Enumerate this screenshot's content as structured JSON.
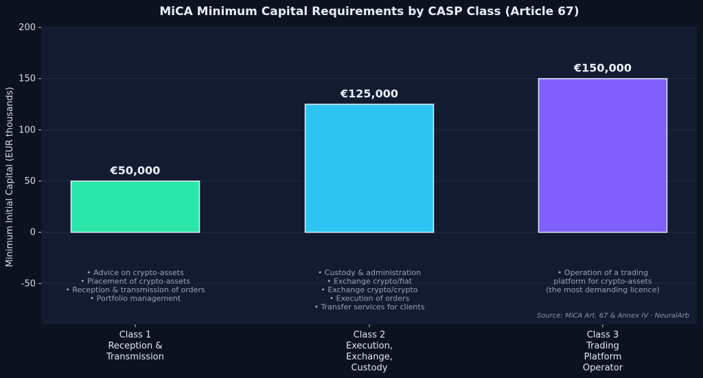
{
  "chart_data": {
    "type": "bar",
    "title": "MiCA Minimum Capital Requirements by CASP Class (Article 67)",
    "ylabel": "Minimum Initial Capital (EUR thousands)",
    "xlabel": "",
    "ylim": [
      -90,
      200
    ],
    "yticks": [
      -50,
      0,
      50,
      100,
      150,
      200
    ],
    "grid": true,
    "categories": [
      [
        "Class 1",
        "Reception &",
        "Transmission"
      ],
      [
        "Class 2",
        "Execution,",
        "Exchange,",
        "Custody"
      ],
      [
        "Class 3",
        "Trading",
        "Platform",
        "Operator"
      ]
    ],
    "values": [
      50,
      125,
      150
    ],
    "value_labels": [
      "€50,000",
      "€125,000",
      "€150,000"
    ],
    "colors": [
      "#2ae6a8",
      "#2ec4f2",
      "#7f5fff"
    ],
    "descriptions": [
      [
        "• Advice on crypto-assets",
        "• Placement of crypto-assets",
        "• Reception & transmission of orders",
        "• Portfolio management"
      ],
      [
        "• Custody & administration",
        "• Exchange crypto/fiat",
        "• Exchange crypto/crypto",
        "• Execution of orders",
        "• Transfer services for clients"
      ],
      [
        "• Operation of a trading",
        "platform for crypto-assets",
        "(the most demanding licence)"
      ]
    ],
    "source": "Source: MiCA Art. 67 & Annex IV · NeuralArb"
  },
  "colors": {
    "page_background": "#0c1220",
    "plot_background": "#121b30",
    "grid": "#1f2a40",
    "bar_edge": "#e8eef8"
  }
}
